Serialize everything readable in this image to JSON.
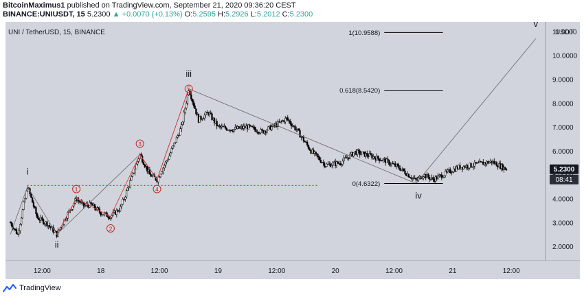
{
  "header": {
    "author": "BitcoinMaximus1",
    "published_text": "published on TradingView.com, September 21, 2020 09:36:20 CEST",
    "symbol": "BINANCE:UNIUSDT, 15",
    "last": "5.2300",
    "arrow": "▲",
    "change": "+0.0070 (+0.13%)",
    "o_label": "O:",
    "o": "5.2595",
    "h_label": "H:",
    "h": "5.2926",
    "l_label": "L:",
    "l": "5.2012",
    "c_label": "C:",
    "c": "5.2300"
  },
  "footer": {
    "brand": "TradingView"
  },
  "colors": {
    "background": "#d1d4dc",
    "candle": "#000000",
    "support": "#e53935",
    "wave_line": "#707070",
    "price_badge": "#131722",
    "timer_badge": "#2a2e39",
    "circle_label": "#c62828"
  },
  "chart_data": {
    "type": "line",
    "title": "UNI / TetherUSD, 15, BINANCE",
    "xlabel": "",
    "ylabel": "USDT",
    "x_range_hours": [
      -14.5,
      37.5
    ],
    "ylim": [
      1.4,
      11.4
    ],
    "x_ticks": [
      {
        "h": -12,
        "label": "12:00"
      },
      {
        "h": 0,
        "label": "18"
      },
      {
        "h": 12,
        "label": "12:00"
      },
      {
        "h": 24,
        "label": "19"
      },
      {
        "h": 36,
        "label": "12:00"
      },
      {
        "h": 48,
        "label": "20"
      },
      {
        "h": 60,
        "label": "12:00"
      },
      {
        "h": 72,
        "label": "21"
      },
      {
        "h": 84,
        "label": "12:00"
      }
    ],
    "y_ticks": [
      "11.0000",
      "10.0000",
      "9.0000",
      "8.0000",
      "7.0000",
      "6.0000",
      "5.0000",
      "4.0000",
      "3.0000",
      "2.0000"
    ],
    "y_tick_values": [
      11,
      10,
      9,
      8,
      7,
      6,
      5,
      4,
      3,
      2
    ],
    "last_price": {
      "label": "5.2300",
      "value": 5.23,
      "timer": "08:41"
    },
    "price_path": [
      {
        "h": -18.5,
        "p": 3.0
      },
      {
        "h": -17.0,
        "p": 2.5
      },
      {
        "h": -15.0,
        "p": 4.5
      },
      {
        "h": -13.0,
        "p": 3.2
      },
      {
        "h": -11.0,
        "p": 2.95
      },
      {
        "h": -9.0,
        "p": 2.5
      },
      {
        "h": -7.5,
        "p": 3.1
      },
      {
        "h": -5.0,
        "p": 4.0
      },
      {
        "h": -3.5,
        "p": 3.7
      },
      {
        "h": -2.0,
        "p": 3.75
      },
      {
        "h": 0.0,
        "p": 3.4
      },
      {
        "h": 2.0,
        "p": 3.25
      },
      {
        "h": 4.0,
        "p": 3.6
      },
      {
        "h": 6.0,
        "p": 4.7
      },
      {
        "h": 8.0,
        "p": 5.85
      },
      {
        "h": 10.0,
        "p": 5.0
      },
      {
        "h": 11.5,
        "p": 4.8
      },
      {
        "h": 14.0,
        "p": 5.8
      },
      {
        "h": 16.5,
        "p": 7.0
      },
      {
        "h": 18.0,
        "p": 8.6
      },
      {
        "h": 20.0,
        "p": 7.3
      },
      {
        "h": 22.0,
        "p": 7.6
      },
      {
        "h": 24.0,
        "p": 7.0
      },
      {
        "h": 27.0,
        "p": 6.9
      },
      {
        "h": 30.0,
        "p": 7.0
      },
      {
        "h": 33.0,
        "p": 6.8
      },
      {
        "h": 36.0,
        "p": 7.1
      },
      {
        "h": 38.0,
        "p": 7.35
      },
      {
        "h": 40.0,
        "p": 6.9
      },
      {
        "h": 43.0,
        "p": 6.0
      },
      {
        "h": 46.0,
        "p": 5.4
      },
      {
        "h": 49.0,
        "p": 5.5
      },
      {
        "h": 52.0,
        "p": 5.95
      },
      {
        "h": 55.0,
        "p": 5.8
      },
      {
        "h": 58.0,
        "p": 5.6
      },
      {
        "h": 61.0,
        "p": 5.3
      },
      {
        "h": 64.5,
        "p": 4.75
      },
      {
        "h": 66.0,
        "p": 5.0
      },
      {
        "h": 68.0,
        "p": 4.8
      },
      {
        "h": 70.0,
        "p": 5.0
      },
      {
        "h": 73.0,
        "p": 5.3
      },
      {
        "h": 76.0,
        "p": 5.4
      },
      {
        "h": 80.0,
        "p": 5.55
      },
      {
        "h": 83.0,
        "p": 5.23
      }
    ],
    "support_level": 4.55,
    "wave_path": [
      {
        "h": -18.5,
        "p": 2.5
      },
      {
        "h": -15.0,
        "p": 4.5
      },
      {
        "h": -9.0,
        "p": 2.5
      },
      {
        "h": 8.0,
        "p": 5.85
      },
      {
        "h": 11.5,
        "p": 4.8
      },
      {
        "h": 18.0,
        "p": 8.6
      },
      {
        "h": 64.5,
        "p": 4.6322
      },
      {
        "h": 89.0,
        "p": 10.7
      }
    ],
    "sub_wave_path": [
      {
        "h": -9.0,
        "p": 2.5
      },
      {
        "h": -5.0,
        "p": 4.0
      },
      {
        "h": 2.0,
        "p": 3.25
      },
      {
        "h": 8.0,
        "p": 5.85
      },
      {
        "h": 11.5,
        "p": 4.8
      },
      {
        "h": 18.0,
        "p": 8.6
      }
    ],
    "wave_labels": [
      {
        "text": "i",
        "h": -15.0,
        "p": 5.0
      },
      {
        "text": "ii",
        "h": -9.0,
        "p": 1.95
      },
      {
        "text": "iii",
        "h": 18.0,
        "p": 9.1
      },
      {
        "text": "iv",
        "h": 65.0,
        "p": 4.0
      },
      {
        "text": "v",
        "h": 89.0,
        "p": 11.2
      }
    ],
    "circle_labels": [
      {
        "text": "1",
        "h": -5.0,
        "p": 4.4
      },
      {
        "text": "2",
        "h": 2.0,
        "p": 2.75
      },
      {
        "text": "3",
        "h": 8.0,
        "p": 6.3
      },
      {
        "text": "4",
        "h": 11.5,
        "p": 4.4
      },
      {
        "text": "5",
        "h": 18.0,
        "p": 8.6
      }
    ],
    "fib_levels": [
      {
        "label": "1(10.9588)",
        "value": 10.9588,
        "h_start": 58.0,
        "h_end": 70.0
      },
      {
        "label": "0.618(8.5420)",
        "value": 8.542,
        "h_start": 58.0,
        "h_end": 70.0
      },
      {
        "label": "0(4.6322)",
        "value": 4.6322,
        "h_start": 58.0,
        "h_end": 70.0
      }
    ]
  }
}
